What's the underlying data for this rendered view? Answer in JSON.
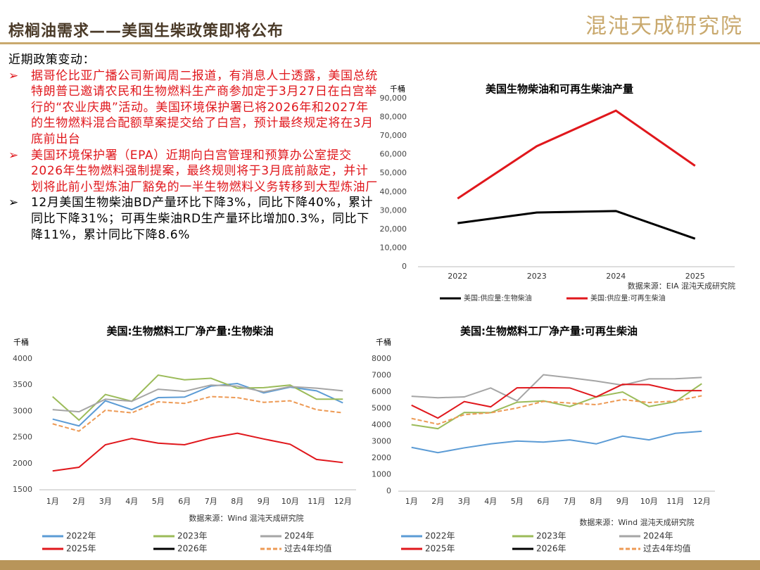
{
  "header": {
    "title": "棕榈油需求——美国生柴政策即将公布",
    "logo": "混沌天成研究院"
  },
  "intro": "近期政策变动：",
  "bullets": [
    "据哥伦比亚广播公司新闻周二报道，有消息人士透露，美国总统特朗普已邀请农民和生物燃料生产商参加定于3月27日在白宫举行的“农业庆典”活动。美国环境保护署已将2026年和2027年的生物燃料混合配额草案提交给了白宫，预计最终规定将在3月底前出台",
    "美国环境保护署（EPA）近期向白宫管理和预算办公室提交2026年生物燃料强制提案，最终规则将于3月底前敲定，并计划将此前小型炼油厂豁免的一半生物燃料义务转移到大型炼油厂",
    "12月美国生物柴油BD产量环比下降3%，同比下降40%，累计同比下降31%；可再生柴油RD生产量环比增加0.3%，同比下降11%，累计同比下降8.6%"
  ],
  "chart_data": [
    {
      "type": "line",
      "title": "美国生物柴油和可再生柴油产量",
      "ylabel": "千桶",
      "source": "数据来源：EIA  混沌天成研究院",
      "categories": [
        "2022",
        "2023",
        "2024",
        "2025"
      ],
      "ylim": [
        0,
        90000
      ],
      "yticks": [
        0,
        {
          "value": 10000,
          "label": "10,000"
        },
        {
          "value": 20000,
          "label": "20,000"
        },
        {
          "value": 30000,
          "label": "30,000"
        },
        {
          "value": 40000,
          "label": "40,000"
        },
        {
          "value": 50000,
          "label": "50,000"
        },
        {
          "value": 60000,
          "label": "60,000"
        },
        {
          "value": 70000,
          "label": "70,000"
        },
        {
          "value": 80000,
          "label": "80,000"
        },
        {
          "value": 90000,
          "label": "90,000"
        }
      ],
      "series": [
        {
          "name": "美国:供应量:生物柴油",
          "color": "#000000",
          "values": [
            23300,
            29000,
            29800,
            15000
          ]
        },
        {
          "name": "美国:供应量:可再生柴油",
          "color": "#e0171c",
          "values": [
            36500,
            64500,
            83500,
            54000
          ]
        }
      ]
    },
    {
      "type": "line",
      "title": "美国:生物燃料工厂净产量:生物柴油",
      "ylabel": "千桶",
      "source": "数据来源：Wind  混沌天成研究院",
      "categories": [
        "1月",
        "2月",
        "3月",
        "4月",
        "5月",
        "6月",
        "7月",
        "8月",
        "9月",
        "10月",
        "11月",
        "12月"
      ],
      "ylim": [
        1500,
        4000
      ],
      "yticks": [
        1500,
        2000,
        2500,
        3000,
        3500,
        4000
      ],
      "series": [
        {
          "name": "2022年",
          "color": "#5b9bd5",
          "values": [
            2850,
            2720,
            3200,
            3030,
            3260,
            3270,
            3480,
            3530,
            3350,
            3460,
            3390,
            3160
          ]
        },
        {
          "name": "2023年",
          "color": "#9bbb59",
          "values": [
            3280,
            2830,
            3320,
            3190,
            3690,
            3600,
            3630,
            3440,
            3450,
            3500,
            3230,
            3230
          ]
        },
        {
          "name": "2024年",
          "color": "#a5a5a5",
          "values": [
            3030,
            2990,
            3230,
            3190,
            3420,
            3380,
            3500,
            3480,
            3370,
            3470,
            3440,
            3390
          ]
        },
        {
          "name": "2025年",
          "color": "#e0171c",
          "values": [
            1860,
            1930,
            2360,
            2480,
            2390,
            2360,
            2490,
            2580,
            2470,
            2370,
            2080,
            2020
          ]
        },
        {
          "name": "2026年",
          "color": "#000000",
          "values": [
            null,
            null,
            null,
            null,
            null,
            null,
            null,
            null,
            null,
            null,
            null,
            null
          ]
        },
        {
          "name": "过去4年均值",
          "color": "#ed9a55",
          "dashed": true,
          "values": [
            2760,
            2620,
            3020,
            2970,
            3180,
            3150,
            3280,
            3260,
            3170,
            3200,
            3030,
            2970
          ]
        }
      ]
    },
    {
      "type": "line",
      "title": "美国:生物燃料工厂净产量:可再生柴油",
      "ylabel": "千桶",
      "source": "数据来源：Wind  混沌天成研究院",
      "categories": [
        "1月",
        "2月",
        "3月",
        "4月",
        "5月",
        "6月",
        "7月",
        "8月",
        "9月",
        "10月",
        "11月",
        "12月"
      ],
      "ylim": [
        0,
        8000
      ],
      "yticks": [
        0,
        1000,
        2000,
        3000,
        4000,
        5000,
        6000,
        7000,
        8000
      ],
      "series": [
        {
          "name": "2022年",
          "color": "#5b9bd5",
          "values": [
            2650,
            2330,
            2620,
            2860,
            3030,
            2970,
            3100,
            2860,
            3330,
            3100,
            3500,
            3620
          ]
        },
        {
          "name": "2023年",
          "color": "#9bbb59",
          "values": [
            4020,
            3780,
            4760,
            4750,
            5380,
            5460,
            5120,
            5700,
            6000,
            5120,
            5410,
            6500
          ]
        },
        {
          "name": "2024年",
          "color": "#a5a5a5",
          "values": [
            5740,
            5650,
            5700,
            6240,
            5460,
            7040,
            6860,
            6660,
            6410,
            6790,
            6800,
            6880
          ]
        },
        {
          "name": "2025年",
          "color": "#e0171c",
          "values": [
            5200,
            4420,
            5420,
            5100,
            6250,
            6260,
            6240,
            5700,
            6460,
            6440,
            6080,
            6080
          ]
        },
        {
          "name": "2026年",
          "color": "#000000",
          "values": [
            null,
            null,
            null,
            null,
            null,
            null,
            null,
            null,
            null,
            null,
            null,
            null
          ]
        },
        {
          "name": "过去4年均值",
          "color": "#ed9a55",
          "dashed": true,
          "values": [
            4400,
            4050,
            4630,
            4740,
            5030,
            5430,
            5330,
            5230,
            5540,
            5360,
            5450,
            5770
          ]
        }
      ]
    }
  ]
}
